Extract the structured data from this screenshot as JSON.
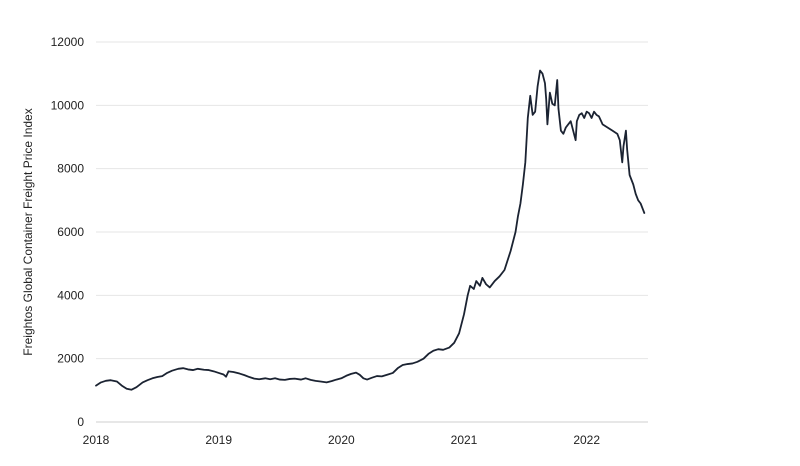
{
  "chart_data": {
    "type": "line",
    "title": "",
    "xlabel": "",
    "ylabel": "Freightos Global Container Freight Price Index",
    "xlim": [
      2018.0,
      2022.5
    ],
    "ylim": [
      0,
      12000
    ],
    "grid": true,
    "legend": "none",
    "x_ticks": [
      2018,
      2019,
      2020,
      2021,
      2022
    ],
    "y_ticks": [
      0,
      2000,
      4000,
      6000,
      8000,
      10000,
      12000
    ],
    "series": [
      {
        "color": "#1b2332",
        "points": [
          [
            2018.0,
            1150
          ],
          [
            2018.04,
            1250
          ],
          [
            2018.08,
            1300
          ],
          [
            2018.12,
            1320
          ],
          [
            2018.17,
            1280
          ],
          [
            2018.21,
            1150
          ],
          [
            2018.25,
            1050
          ],
          [
            2018.29,
            1020
          ],
          [
            2018.33,
            1100
          ],
          [
            2018.38,
            1250
          ],
          [
            2018.42,
            1320
          ],
          [
            2018.46,
            1380
          ],
          [
            2018.5,
            1420
          ],
          [
            2018.54,
            1450
          ],
          [
            2018.58,
            1550
          ],
          [
            2018.62,
            1620
          ],
          [
            2018.67,
            1680
          ],
          [
            2018.71,
            1700
          ],
          [
            2018.75,
            1660
          ],
          [
            2018.79,
            1640
          ],
          [
            2018.83,
            1680
          ],
          [
            2018.88,
            1650
          ],
          [
            2018.92,
            1640
          ],
          [
            2018.96,
            1600
          ],
          [
            2019.0,
            1550
          ],
          [
            2019.04,
            1500
          ],
          [
            2019.06,
            1430
          ],
          [
            2019.08,
            1600
          ],
          [
            2019.12,
            1580
          ],
          [
            2019.17,
            1530
          ],
          [
            2019.21,
            1480
          ],
          [
            2019.25,
            1420
          ],
          [
            2019.29,
            1370
          ],
          [
            2019.33,
            1350
          ],
          [
            2019.38,
            1380
          ],
          [
            2019.42,
            1350
          ],
          [
            2019.46,
            1380
          ],
          [
            2019.5,
            1340
          ],
          [
            2019.54,
            1330
          ],
          [
            2019.58,
            1360
          ],
          [
            2019.62,
            1370
          ],
          [
            2019.67,
            1340
          ],
          [
            2019.71,
            1380
          ],
          [
            2019.75,
            1330
          ],
          [
            2019.79,
            1300
          ],
          [
            2019.83,
            1280
          ],
          [
            2019.88,
            1250
          ],
          [
            2019.92,
            1290
          ],
          [
            2019.96,
            1340
          ],
          [
            2020.0,
            1380
          ],
          [
            2020.04,
            1460
          ],
          [
            2020.08,
            1520
          ],
          [
            2020.12,
            1560
          ],
          [
            2020.15,
            1490
          ],
          [
            2020.18,
            1380
          ],
          [
            2020.21,
            1340
          ],
          [
            2020.25,
            1400
          ],
          [
            2020.29,
            1450
          ],
          [
            2020.33,
            1440
          ],
          [
            2020.38,
            1500
          ],
          [
            2020.42,
            1550
          ],
          [
            2020.46,
            1700
          ],
          [
            2020.5,
            1800
          ],
          [
            2020.54,
            1830
          ],
          [
            2020.58,
            1850
          ],
          [
            2020.62,
            1900
          ],
          [
            2020.67,
            2000
          ],
          [
            2020.71,
            2150
          ],
          [
            2020.75,
            2250
          ],
          [
            2020.79,
            2300
          ],
          [
            2020.83,
            2280
          ],
          [
            2020.88,
            2350
          ],
          [
            2020.92,
            2500
          ],
          [
            2020.96,
            2800
          ],
          [
            2021.0,
            3400
          ],
          [
            2021.03,
            4000
          ],
          [
            2021.05,
            4300
          ],
          [
            2021.08,
            4200
          ],
          [
            2021.1,
            4450
          ],
          [
            2021.13,
            4300
          ],
          [
            2021.15,
            4550
          ],
          [
            2021.18,
            4350
          ],
          [
            2021.21,
            4250
          ],
          [
            2021.25,
            4450
          ],
          [
            2021.29,
            4600
          ],
          [
            2021.33,
            4800
          ],
          [
            2021.38,
            5400
          ],
          [
            2021.42,
            6000
          ],
          [
            2021.44,
            6500
          ],
          [
            2021.46,
            6900
          ],
          [
            2021.48,
            7500
          ],
          [
            2021.5,
            8200
          ],
          [
            2021.52,
            9600
          ],
          [
            2021.54,
            10300
          ],
          [
            2021.56,
            9700
          ],
          [
            2021.58,
            9800
          ],
          [
            2021.6,
            10600
          ],
          [
            2021.62,
            11100
          ],
          [
            2021.64,
            11000
          ],
          [
            2021.66,
            10700
          ],
          [
            2021.67,
            10200
          ],
          [
            2021.68,
            9400
          ],
          [
            2021.7,
            10400
          ],
          [
            2021.72,
            10050
          ],
          [
            2021.74,
            10000
          ],
          [
            2021.76,
            10800
          ],
          [
            2021.77,
            9900
          ],
          [
            2021.79,
            9200
          ],
          [
            2021.81,
            9100
          ],
          [
            2021.83,
            9300
          ],
          [
            2021.85,
            9400
          ],
          [
            2021.87,
            9500
          ],
          [
            2021.89,
            9200
          ],
          [
            2021.91,
            8900
          ],
          [
            2021.92,
            9500
          ],
          [
            2021.94,
            9700
          ],
          [
            2021.96,
            9750
          ],
          [
            2021.98,
            9600
          ],
          [
            2022.0,
            9800
          ],
          [
            2022.02,
            9750
          ],
          [
            2022.04,
            9600
          ],
          [
            2022.06,
            9800
          ],
          [
            2022.08,
            9700
          ],
          [
            2022.1,
            9650
          ],
          [
            2022.13,
            9400
          ],
          [
            2022.17,
            9300
          ],
          [
            2022.21,
            9200
          ],
          [
            2022.25,
            9100
          ],
          [
            2022.27,
            8900
          ],
          [
            2022.29,
            8200
          ],
          [
            2022.3,
            8700
          ],
          [
            2022.32,
            9200
          ],
          [
            2022.33,
            8600
          ],
          [
            2022.35,
            7800
          ],
          [
            2022.38,
            7500
          ],
          [
            2022.4,
            7200
          ],
          [
            2022.42,
            7000
          ],
          [
            2022.44,
            6900
          ],
          [
            2022.46,
            6700
          ],
          [
            2022.47,
            6600
          ]
        ]
      }
    ]
  }
}
